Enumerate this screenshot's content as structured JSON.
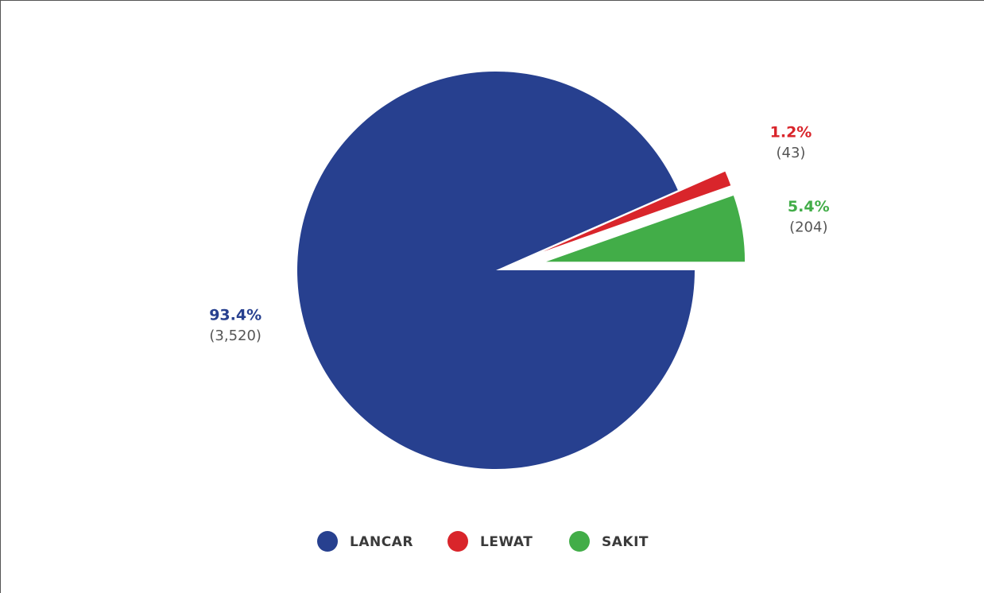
{
  "chart_data": {
    "type": "pie",
    "categories": [
      "LANCAR",
      "LEWAT",
      "SAKIT"
    ],
    "values": [
      93.4,
      1.2,
      5.4
    ],
    "value_labels": [
      "93.4%",
      "1.2%",
      "5.4%"
    ],
    "counts": [
      3520,
      43,
      204
    ],
    "count_labels": [
      "(3,520)",
      "(43)",
      "(204)"
    ],
    "colors": [
      "#27408f",
      "#d9252b",
      "#42ad48"
    ],
    "legend": "bottom"
  }
}
